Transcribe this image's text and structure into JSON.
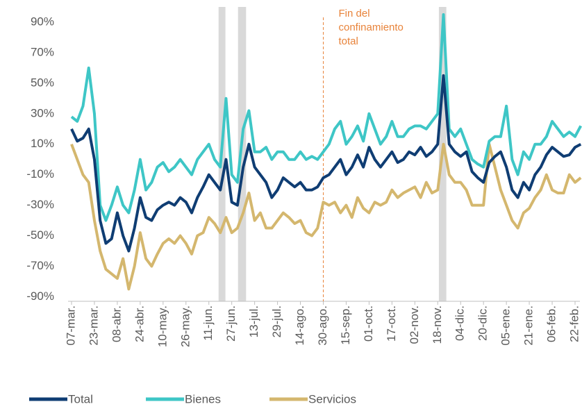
{
  "chart_data": {
    "type": "line",
    "categories": [
      "07-mar.",
      null,
      null,
      null,
      "23-mar.",
      null,
      null,
      null,
      "08-abr.",
      null,
      null,
      null,
      "24-abr.",
      null,
      null,
      null,
      "10-may.",
      null,
      null,
      null,
      "26-may.",
      null,
      null,
      null,
      "11-jun.",
      null,
      null,
      null,
      "27-jun.",
      null,
      null,
      null,
      "13-jul.",
      null,
      null,
      null,
      "29-jul.",
      null,
      null,
      null,
      "14-ago.",
      null,
      null,
      null,
      "30-ago.",
      null,
      null,
      null,
      "15-sep.",
      null,
      null,
      null,
      "01-oct.",
      null,
      null,
      null,
      "17-oct.",
      null,
      null,
      null,
      "02-nov.",
      null,
      null,
      null,
      "18-nov.",
      null,
      null,
      null,
      "04-dic.",
      null,
      null,
      null,
      "20-dic.",
      null,
      null,
      null,
      "05-ene.",
      null,
      null,
      null,
      "21-ene.",
      null,
      null,
      null,
      "06-feb.",
      null,
      null,
      null,
      "22-feb.",
      null
    ],
    "series": [
      {
        "name": "Total",
        "color": "#0f3d73",
        "values": [
          20,
          12,
          14,
          20,
          0,
          -40,
          -55,
          -52,
          -35,
          -50,
          -60,
          -45,
          -25,
          -38,
          -40,
          -33,
          -30,
          -28,
          -30,
          -25,
          -28,
          -35,
          -25,
          -18,
          -10,
          -15,
          -20,
          0,
          -28,
          -30,
          -5,
          10,
          -5,
          -10,
          -15,
          -25,
          -20,
          -12,
          -15,
          -18,
          -15,
          -20,
          -20,
          -18,
          -12,
          -10,
          -5,
          0,
          -10,
          -5,
          3,
          -5,
          8,
          0,
          -5,
          0,
          5,
          -2,
          0,
          5,
          3,
          8,
          2,
          5,
          10,
          55,
          10,
          5,
          2,
          5,
          -8,
          -12,
          -15,
          -2,
          2,
          5,
          -5,
          -20,
          -25,
          -15,
          -20,
          -10,
          -5,
          3,
          8,
          5,
          2,
          3,
          8,
          10
        ]
      },
      {
        "name": "Bienes",
        "color": "#3ec6c6",
        "values": [
          28,
          25,
          35,
          60,
          30,
          -30,
          -40,
          -30,
          -18,
          -30,
          -35,
          -20,
          0,
          -20,
          -15,
          -5,
          -2,
          -8,
          -5,
          0,
          -5,
          -10,
          0,
          5,
          10,
          0,
          -5,
          40,
          -10,
          -15,
          20,
          32,
          5,
          5,
          8,
          0,
          5,
          5,
          0,
          0,
          5,
          0,
          2,
          0,
          5,
          10,
          20,
          25,
          10,
          15,
          22,
          12,
          30,
          20,
          10,
          15,
          25,
          15,
          15,
          20,
          22,
          22,
          20,
          25,
          30,
          95,
          20,
          15,
          20,
          10,
          0,
          -3,
          -5,
          12,
          15,
          15,
          35,
          0,
          -10,
          5,
          0,
          10,
          10,
          15,
          25,
          20,
          15,
          18,
          15,
          22
        ]
      },
      {
        "name": "Servicios",
        "color": "#d4b76e",
        "values": [
          10,
          0,
          -10,
          -15,
          -40,
          -60,
          -72,
          -75,
          -78,
          -65,
          -85,
          -70,
          -48,
          -65,
          -70,
          -62,
          -55,
          -52,
          -55,
          -50,
          -55,
          -62,
          -50,
          -48,
          -38,
          -42,
          -48,
          -38,
          -48,
          -45,
          -35,
          -22,
          -40,
          -35,
          -45,
          -45,
          -40,
          -35,
          -38,
          -42,
          -40,
          -48,
          -50,
          -45,
          -28,
          -30,
          -28,
          -35,
          -30,
          -38,
          -25,
          -32,
          -35,
          -28,
          -30,
          -28,
          -20,
          -25,
          -22,
          -20,
          -18,
          -25,
          -15,
          -22,
          -20,
          10,
          -10,
          -15,
          -15,
          -20,
          -30,
          -30,
          -30,
          10,
          -5,
          -20,
          -30,
          -40,
          -45,
          -35,
          -32,
          -25,
          -20,
          -10,
          -20,
          -22,
          -22,
          -10,
          -15,
          -12
        ]
      }
    ],
    "ylim": [
      -93,
      100
    ],
    "yticks": [
      {
        "value": -90,
        "label": "-90%"
      },
      {
        "value": -70,
        "label": "-70%"
      },
      {
        "value": -50,
        "label": "-50%"
      },
      {
        "value": -30,
        "label": "-30%"
      },
      {
        "value": -10,
        "label": "-10%"
      },
      {
        "value": 10,
        "label": "10%"
      },
      {
        "value": 30,
        "label": "30%"
      },
      {
        "value": 50,
        "label": "50%"
      },
      {
        "value": 70,
        "label": "70%"
      },
      {
        "value": 90,
        "label": "90%"
      }
    ],
    "shaded_ranges": [
      [
        25.7,
        26.9
      ],
      [
        29.1,
        30.5
      ],
      [
        64.2,
        65.5
      ]
    ],
    "annotation": {
      "lines": [
        "Fin del",
        "confinamiento",
        "total"
      ],
      "x": 44
    }
  }
}
